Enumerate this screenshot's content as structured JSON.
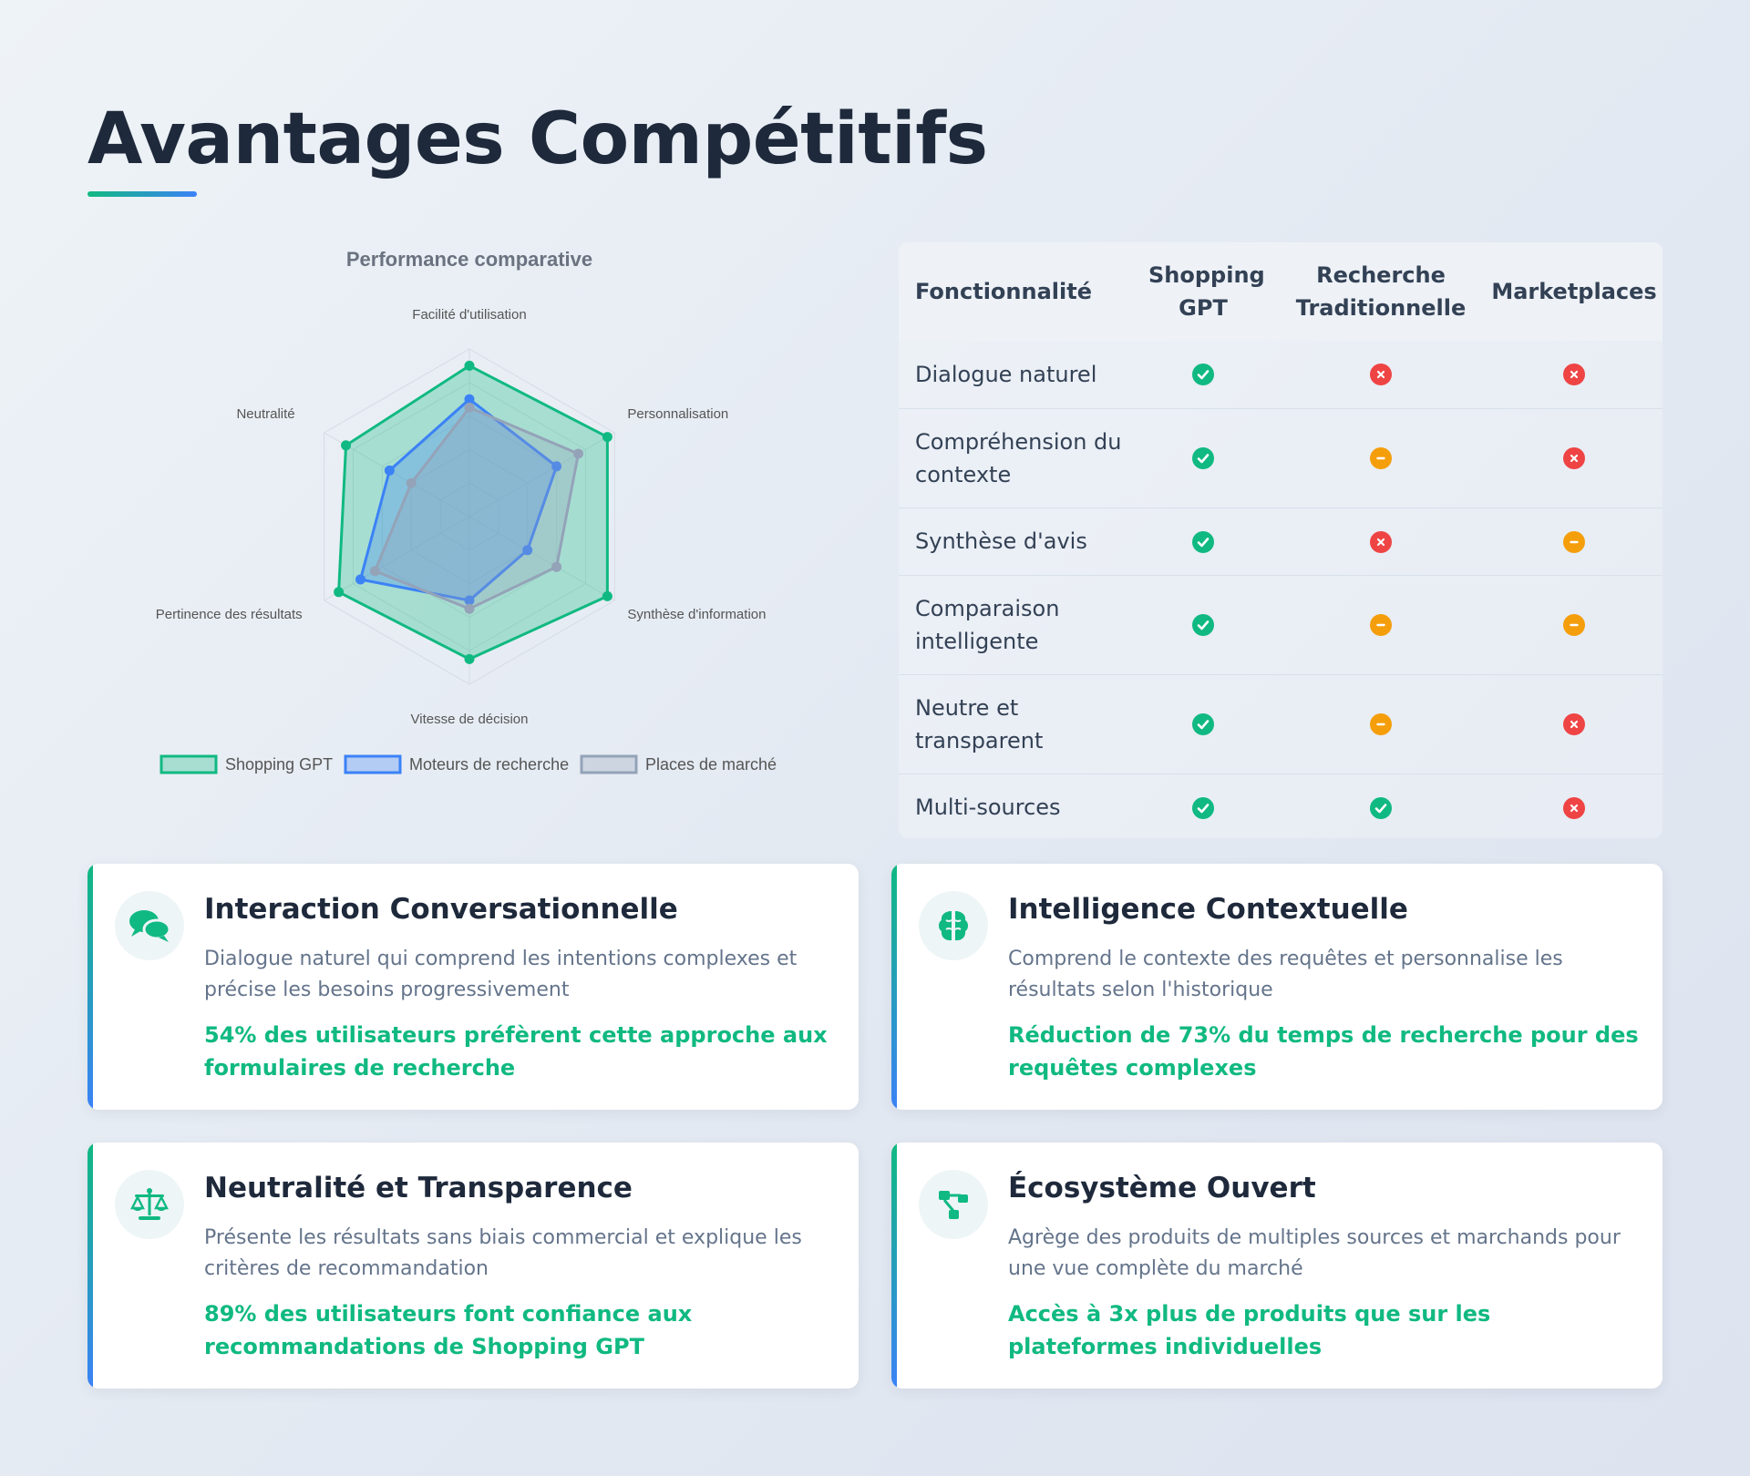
{
  "page": {
    "title": "Avantages Compétitifs"
  },
  "chart_data": {
    "type": "radar",
    "title": "Performance comparative",
    "categories": [
      "Facilité d'utilisation",
      "Personnalisation",
      "Synthèse d'information",
      "Vitesse de décision",
      "Pertinence des résultats",
      "Neutralité"
    ],
    "rmax": 100,
    "series": [
      {
        "name": "Shopping GPT",
        "values": [
          90,
          95,
          95,
          85,
          90,
          85
        ],
        "color": "#10b981"
      },
      {
        "name": "Moteurs de recherche",
        "values": [
          70,
          60,
          40,
          50,
          75,
          55
        ],
        "color": "#3b82f6"
      },
      {
        "name": "Places de marché",
        "values": [
          65,
          75,
          60,
          55,
          65,
          40
        ],
        "color": "#94a3b8"
      }
    ],
    "legend": "bottom"
  },
  "comparison": {
    "headers": [
      "Fonctionnalité",
      "Shopping GPT",
      "Recherche Traditionnelle",
      "Marketplaces"
    ],
    "rows": [
      {
        "feature": "Dialogue naturel",
        "values": [
          "yes",
          "no",
          "no"
        ]
      },
      {
        "feature": "Compréhension du contexte",
        "values": [
          "yes",
          "partial",
          "no"
        ]
      },
      {
        "feature": "Synthèse d'avis",
        "values": [
          "yes",
          "no",
          "partial"
        ]
      },
      {
        "feature": "Comparaison intelligente",
        "values": [
          "yes",
          "partial",
          "partial"
        ]
      },
      {
        "feature": "Neutre et transparent",
        "values": [
          "yes",
          "partial",
          "no"
        ]
      },
      {
        "feature": "Multi-sources",
        "values": [
          "yes",
          "yes",
          "no"
        ]
      }
    ]
  },
  "cards": [
    {
      "icon": "comments-icon",
      "title": "Interaction Conversationnelle",
      "description": "Dialogue naturel qui comprend les intentions complexes et précise les besoins progressivement",
      "stat": "54% des utilisateurs préfèrent cette approche aux formulaires de recherche"
    },
    {
      "icon": "brain-icon",
      "title": "Intelligence Contextuelle",
      "description": "Comprend le contexte des requêtes et personnalise les résultats selon l'historique",
      "stat": "Réduction de 73% du temps de recherche pour des requêtes complexes"
    },
    {
      "icon": "scale-icon",
      "title": "Neutralité et Transparence",
      "description": "Présente les résultats sans biais commercial et explique les critères de recommandation",
      "stat": "89% des utilisateurs font confiance aux recommandations de Shopping GPT"
    },
    {
      "icon": "network-icon",
      "title": "Écosystème Ouvert",
      "description": "Agrège des produits de multiples sources et marchands pour une vue complète du marché",
      "stat": "Accès à 3x plus de produits que sur les plateformes individuelles"
    }
  ],
  "colors": {
    "accent_green": "#10b981",
    "accent_blue": "#3b82f6",
    "no_red": "#ef4444",
    "partial_orange": "#f59e0b"
  }
}
